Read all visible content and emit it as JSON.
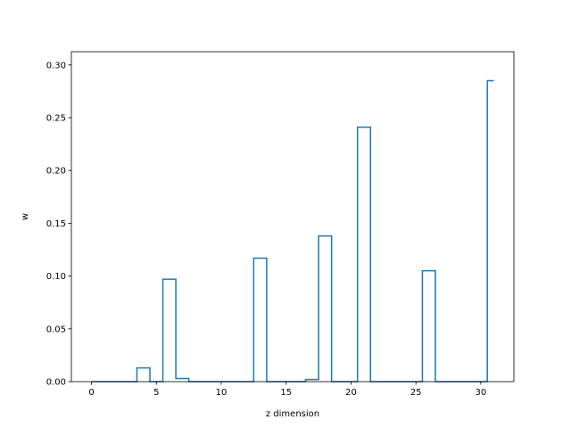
{
  "chart_data": {
    "type": "step",
    "xlabel": "z dimension",
    "ylabel": "w",
    "xlim": [
      -1.55,
      32.55
    ],
    "ylim": [
      0,
      0.3125
    ],
    "xticks": [
      0,
      5,
      10,
      15,
      20,
      25,
      30
    ],
    "yticks": [
      0.0,
      0.05,
      0.1,
      0.15,
      0.2,
      0.25,
      0.3
    ],
    "ytick_labels": [
      "0.00",
      "0.05",
      "0.10",
      "0.15",
      "0.20",
      "0.25",
      "0.30"
    ],
    "grid": false,
    "series": [
      {
        "color": "#1f77b4",
        "x": [
          0,
          1,
          2,
          3,
          4,
          5,
          6,
          7,
          8,
          9,
          10,
          11,
          12,
          13,
          14,
          15,
          16,
          17,
          18,
          19,
          20,
          21,
          22,
          23,
          24,
          25,
          26,
          27,
          28,
          29,
          30,
          31
        ],
        "y": [
          0,
          0,
          0,
          0,
          0.013,
          0,
          0.097,
          0.003,
          0,
          0,
          0,
          0,
          0,
          0.117,
          0,
          0,
          0,
          0.002,
          0.138,
          0,
          0,
          0.241,
          0,
          0,
          0,
          0,
          0.105,
          0,
          0,
          0,
          0,
          0.285
        ]
      }
    ]
  }
}
